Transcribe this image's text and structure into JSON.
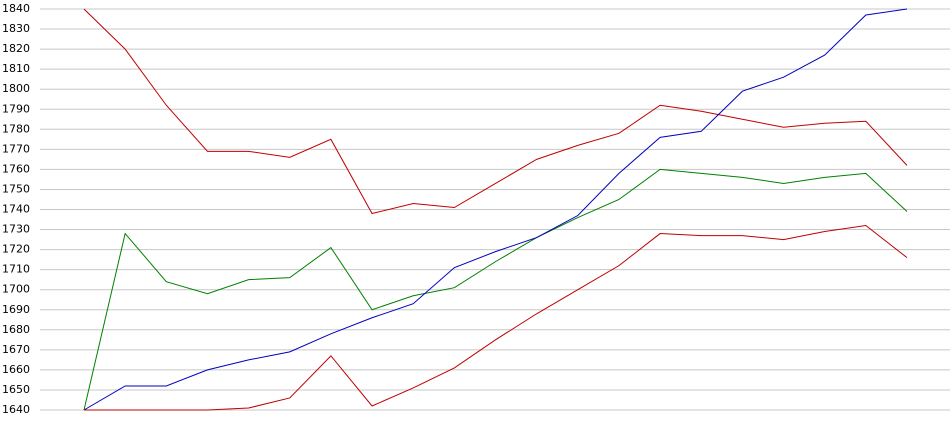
{
  "chart_data": {
    "type": "line",
    "categories": [
      null,
      null,
      null,
      null,
      null,
      null,
      null,
      null,
      null,
      null,
      null,
      null,
      null,
      null,
      null,
      null,
      null,
      null,
      null,
      null,
      null
    ],
    "series": [
      {
        "color": "#c00000",
        "values": [
          1840,
          1820,
          1792,
          1769,
          1769,
          1766,
          1775,
          1738,
          1743,
          1741,
          1753,
          1765,
          1772,
          1778,
          1792,
          1789,
          1785,
          1781,
          1783,
          1784,
          1762
        ]
      },
      {
        "color": "#008000",
        "values": [
          1640,
          1728,
          1704,
          1698,
          1705,
          1706,
          1721,
          1690,
          1697,
          1701,
          1714,
          1726,
          1736,
          1745,
          1760,
          1758,
          1756,
          1753,
          1756,
          1758,
          1739
        ]
      },
      {
        "color": "#0000c0",
        "values": [
          1640,
          1652,
          1652,
          1660,
          1665,
          1669,
          1678,
          1686,
          1693,
          1711,
          1719,
          1726,
          1737,
          1758,
          1776,
          1779,
          1799,
          1806,
          1817,
          1837,
          1840
        ]
      },
      {
        "color": "#c00000",
        "values": [
          1640,
          1640,
          1640,
          1640,
          1641,
          1646,
          1667,
          1642,
          1651,
          1661,
          1675,
          1688,
          1700,
          1712,
          1728,
          1727,
          1727,
          1725,
          1729,
          1732,
          1716
        ]
      }
    ],
    "ylim": [
      1640,
      1840
    ],
    "yticks": [
      1640,
      1650,
      1660,
      1670,
      1680,
      1690,
      1700,
      1710,
      1720,
      1730,
      1740,
      1750,
      1760,
      1770,
      1780,
      1790,
      1800,
      1810,
      1820,
      1830,
      1840
    ],
    "grid": true
  }
}
